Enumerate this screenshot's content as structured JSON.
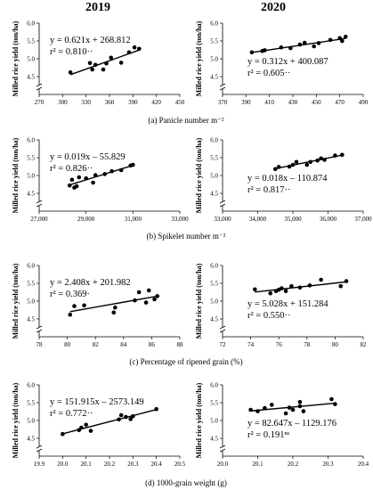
{
  "years": [
    "2019",
    "2020"
  ],
  "y_axis_label": "Milled rice yield (ton/ha)",
  "captions": [
    "(a) Panicle number m⁻²",
    "(b) Spikelet number m⁻²",
    "(c) Percentage of ripened grain (%)",
    "(d) 1000-grain weight (g)"
  ],
  "chart_data": [
    {
      "type": "scatter",
      "row": 0,
      "col": 0,
      "equation": "y = 0.621x + 268.812",
      "r2": "r² = 0.810··",
      "xlim": [
        270,
        450
      ],
      "ylim": [
        4.0,
        6.0
      ],
      "xticks": [
        270,
        300,
        330,
        360,
        390,
        420,
        450
      ],
      "xtick_labels": [
        "270",
        "300",
        "330",
        "360",
        "390",
        "420",
        "450"
      ],
      "yticks": [
        4.0,
        4.5,
        5.0,
        5.5,
        6.0
      ],
      "ytick_labels": [
        "",
        "4.5",
        "5.0",
        "5.5",
        "6.0"
      ],
      "x": [
        310,
        335,
        338,
        342,
        352,
        356,
        362,
        375,
        385,
        392,
        398
      ],
      "y": [
        4.62,
        4.88,
        4.7,
        4.83,
        4.7,
        4.87,
        5.03,
        4.89,
        5.18,
        5.32,
        5.28
      ],
      "fit": {
        "slope": 0.621,
        "intercept": 268.812
      }
    },
    {
      "type": "scatter",
      "row": 0,
      "col": 1,
      "equation": "y = 0.312x + 400.087",
      "r2": "r² = 0.605··",
      "xlim": [
        370,
        490
      ],
      "ylim": [
        4.0,
        6.0
      ],
      "xticks": [
        370,
        390,
        410,
        430,
        450,
        470,
        490
      ],
      "xtick_labels": [
        "370",
        "390",
        "410",
        "430",
        "450",
        "470",
        "490"
      ],
      "yticks": [
        4.0,
        4.5,
        5.0,
        5.5,
        6.0
      ],
      "ytick_labels": [
        "",
        "4.5",
        "5.0",
        "5.5",
        "6.0"
      ],
      "x": [
        395,
        404,
        406,
        420,
        428,
        436,
        440,
        448,
        452,
        462,
        470,
        472,
        475
      ],
      "y": [
        5.18,
        5.22,
        5.24,
        5.32,
        5.3,
        5.4,
        5.45,
        5.35,
        5.44,
        5.53,
        5.58,
        5.5,
        5.62
      ],
      "fit": {
        "slope": 0.312,
        "intercept": 400.087
      }
    },
    {
      "type": "scatter",
      "row": 1,
      "col": 0,
      "equation": "y = 0.019x – 55.829",
      "r2": "r² = 0.826··",
      "xlim": [
        27000,
        33000
      ],
      "ylim": [
        4.0,
        6.0
      ],
      "xticks": [
        27000,
        29000,
        31000,
        33000
      ],
      "xtick_labels": [
        "27,000",
        "29,000",
        "31,000",
        "33,000"
      ],
      "yticks": [
        4.0,
        4.5,
        5.0,
        5.5,
        6.0
      ],
      "ytick_labels": [
        "",
        "4.5",
        "5.0",
        "5.5",
        "6.0"
      ],
      "x": [
        28300,
        28400,
        28500,
        28600,
        28700,
        29000,
        29300,
        29400,
        29800,
        30100,
        30500,
        30900,
        31000
      ],
      "y": [
        4.72,
        4.88,
        4.66,
        4.7,
        4.95,
        4.92,
        4.8,
        5.01,
        5.04,
        5.12,
        5.15,
        5.28,
        5.3
      ],
      "fit": {
        "slope": 0.019,
        "intercept": -55.829
      }
    },
    {
      "type": "scatter",
      "row": 1,
      "col": 1,
      "equation": "y = 0.018x – 110.874",
      "r2": "r² = 0.817··",
      "xlim": [
        33000,
        37000
      ],
      "ylim": [
        4.0,
        6.0
      ],
      "xticks": [
        33000,
        34000,
        35000,
        36000,
        37000
      ],
      "xtick_labels": [
        "33,000",
        "34,000",
        "35,000",
        "36,000",
        "37,000"
      ],
      "yticks": [
        4.0,
        4.5,
        5.0,
        5.5,
        6.0
      ],
      "ytick_labels": [
        "",
        "4.5",
        "5.0",
        "5.5",
        "6.0"
      ],
      "x": [
        34500,
        34600,
        34900,
        35000,
        35100,
        35400,
        35500,
        35700,
        35800,
        35900,
        36200,
        36400
      ],
      "y": [
        5.18,
        5.24,
        5.25,
        5.3,
        5.38,
        5.3,
        5.38,
        5.42,
        5.48,
        5.44,
        5.56,
        5.58
      ],
      "fit": {
        "slope": 0.018,
        "intercept": -110.874
      }
    },
    {
      "type": "scatter",
      "row": 2,
      "col": 0,
      "equation": "y = 2.408x + 201.982",
      "r2": "r² = 0.369·",
      "xlim": [
        78,
        88
      ],
      "ylim": [
        4.0,
        6.0
      ],
      "xticks": [
        78,
        80,
        82,
        84,
        86,
        88
      ],
      "xtick_labels": [
        "78",
        "80",
        "82",
        "84",
        "86",
        "88"
      ],
      "yticks": [
        4.0,
        4.5,
        5.0,
        5.5,
        6.0
      ],
      "ytick_labels": [
        "",
        "4.5",
        "5.0",
        "5.5",
        "6.0"
      ],
      "x": [
        80.2,
        80.5,
        81.2,
        83.3,
        83.4,
        84.8,
        85.1,
        85.6,
        85.8,
        86.2,
        86.4
      ],
      "y": [
        4.62,
        4.86,
        4.88,
        4.68,
        4.82,
        5.02,
        5.25,
        4.96,
        5.3,
        5.05,
        5.14
      ],
      "fit": {
        "slope": 2.408,
        "intercept": 201.982
      }
    },
    {
      "type": "scatter",
      "row": 2,
      "col": 1,
      "equation": "y = 5.028x + 151.284",
      "r2": "r² = 0.550··",
      "xlim": [
        72,
        82
      ],
      "ylim": [
        4.0,
        6.0
      ],
      "xticks": [
        72,
        74,
        76,
        78,
        80,
        82
      ],
      "xtick_labels": [
        "72",
        "74",
        "76",
        "78",
        "80",
        "82"
      ],
      "yticks": [
        4.0,
        4.5,
        5.0,
        5.5,
        6.0
      ],
      "ytick_labels": [
        "",
        "4.5",
        "5.0",
        "5.5",
        "6.0"
      ],
      "x": [
        74.3,
        75.4,
        75.8,
        76.0,
        76.2,
        76.5,
        76.9,
        77.5,
        78.2,
        79.0,
        80.4,
        80.8
      ],
      "y": [
        5.33,
        5.22,
        5.28,
        5.32,
        5.36,
        5.28,
        5.42,
        5.38,
        5.44,
        5.6,
        5.42,
        5.56
      ],
      "fit": {
        "slope": 5.028,
        "intercept": 151.284
      }
    },
    {
      "type": "scatter",
      "row": 3,
      "col": 0,
      "equation": "y = 151.915x – 2573.149",
      "r2": "r² = 0.772··",
      "xlim": [
        19.9,
        20.5
      ],
      "ylim": [
        4.0,
        6.0
      ],
      "xticks": [
        19.9,
        20.0,
        20.1,
        20.2,
        20.3,
        20.4,
        20.5
      ],
      "xtick_labels": [
        "19.9",
        "20.0",
        "20.1",
        "20.2",
        "20.3",
        "20.4",
        "20.5"
      ],
      "yticks": [
        4.0,
        4.5,
        5.0,
        5.5,
        6.0
      ],
      "ytick_labels": [
        "",
        "4.5",
        "5.0",
        "5.5",
        "6.0"
      ],
      "x": [
        20.0,
        20.07,
        20.08,
        20.1,
        20.12,
        20.24,
        20.25,
        20.27,
        20.29,
        20.3,
        20.4
      ],
      "y": [
        4.62,
        4.73,
        4.8,
        4.88,
        4.71,
        5.03,
        5.15,
        5.1,
        5.04,
        5.12,
        5.32
      ],
      "fit": {
        "slope": 151.915,
        "intercept": -2573.149
      }
    },
    {
      "type": "scatter",
      "row": 3,
      "col": 1,
      "equation": "y = 82.647x – 1129.176",
      "r2": "r² = 0.191ⁿˢ",
      "xlim": [
        20.0,
        20.4
      ],
      "ylim": [
        4.0,
        6.0
      ],
      "xticks": [
        20.0,
        20.1,
        20.2,
        20.3,
        20.4
      ],
      "xtick_labels": [
        "20.0",
        "20.1",
        "20.2",
        "20.3",
        "20.4"
      ],
      "yticks": [
        4.0,
        4.5,
        5.0,
        5.5,
        6.0
      ],
      "ytick_labels": [
        "",
        "4.5",
        "5.0",
        "5.5",
        "6.0"
      ],
      "x": [
        20.08,
        20.1,
        20.12,
        20.14,
        20.18,
        20.19,
        20.2,
        20.22,
        20.22,
        20.23,
        20.31,
        20.32
      ],
      "y": [
        5.3,
        5.26,
        5.35,
        5.44,
        5.2,
        5.36,
        5.3,
        5.4,
        5.52,
        5.26,
        5.6,
        5.46
      ],
      "fit": {
        "slope": 82.647,
        "intercept": -1129.176
      }
    }
  ]
}
